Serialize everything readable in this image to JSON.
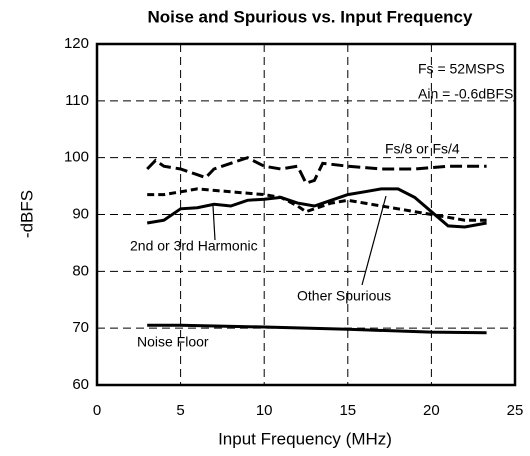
{
  "chart_data": {
    "type": "line",
    "title": "Noise and Spurious vs. Input Frequency",
    "xlabel": "Input Frequency (MHz)",
    "ylabel": "-dBFS",
    "xlim": [
      0,
      25
    ],
    "xticks": [
      0,
      5,
      10,
      15,
      20,
      25
    ],
    "ylim": [
      60,
      120
    ],
    "yticks": [
      60,
      70,
      80,
      90,
      100,
      110,
      120
    ],
    "grid": true,
    "annotations": [
      {
        "text": "Fs = 52MSPS"
      },
      {
        "text": "Ain = -0.6dBFS"
      }
    ],
    "series": [
      {
        "name": "Fs/8 or Fs/4",
        "color": "#000000",
        "dash": "long",
        "x": [
          3,
          3.5,
          4,
          5,
          6,
          6.5,
          7,
          8,
          9,
          10,
          11,
          12,
          12.5,
          13,
          13.5,
          15,
          17,
          19,
          21,
          23.3
        ],
        "values": [
          98,
          99.5,
          98.5,
          98,
          97,
          96.5,
          98,
          99,
          100,
          98.5,
          98,
          98.5,
          95.5,
          96,
          99,
          98.5,
          98,
          98,
          98.5,
          98.5
        ]
      },
      {
        "name": "2nd or 3rd Harmonic",
        "color": "#000000",
        "dash": "short",
        "x": [
          3,
          4,
          5,
          6,
          8,
          10,
          11,
          12,
          12.5,
          13,
          14,
          15,
          16,
          17,
          18,
          19,
          20,
          21,
          22,
          23.3
        ],
        "values": [
          93.5,
          93.5,
          94,
          94.5,
          94,
          93.5,
          93,
          91.5,
          90.5,
          91,
          92,
          92.5,
          92,
          91.5,
          91,
          90.5,
          90,
          89.5,
          89,
          89
        ]
      },
      {
        "name": "Other Spurious",
        "color": "#000000",
        "dash": "solid",
        "x": [
          3,
          4,
          5,
          6,
          7,
          8,
          9,
          10,
          11,
          12,
          13,
          14,
          15,
          16,
          17,
          18,
          19,
          20,
          21,
          22,
          23.3
        ],
        "values": [
          88.5,
          89,
          91,
          91.2,
          91.8,
          91.5,
          92.5,
          92.7,
          93,
          92,
          91.5,
          92.5,
          93.5,
          94,
          94.5,
          94.5,
          93,
          90.5,
          88,
          87.8,
          88.5
        ]
      },
      {
        "name": "Noise Floor",
        "color": "#000000",
        "dash": "solid",
        "x": [
          3,
          5,
          10,
          15,
          20,
          23.3
        ],
        "values": [
          70.5,
          70.5,
          70.2,
          69.8,
          69.3,
          69.2
        ]
      }
    ]
  }
}
